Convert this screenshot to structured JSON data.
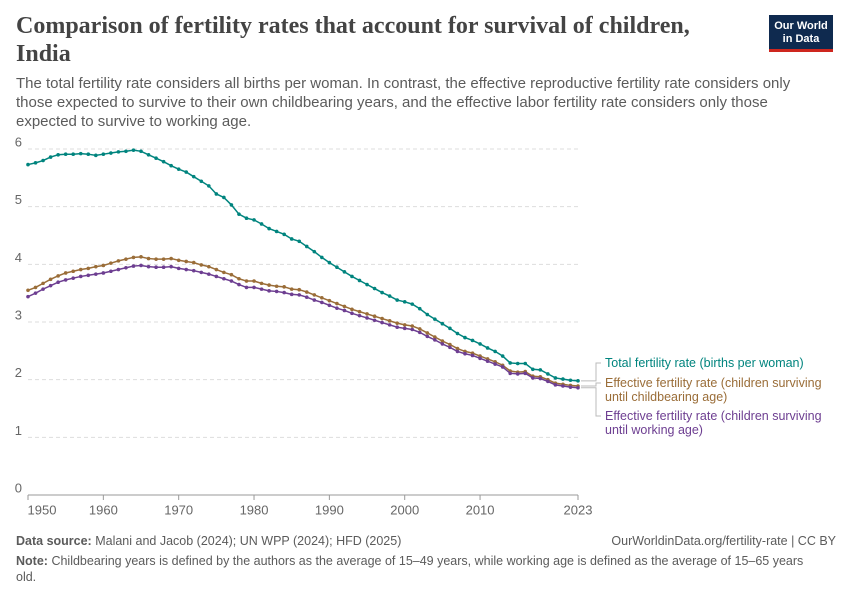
{
  "chart_data": {
    "type": "line",
    "title": "Comparison of fertility rates that account for survival of children, India",
    "subtitle": "The total fertility rate considers all births per woman. In contrast, the effective reproductive fertility rate considers only those expected to survive to their own childbearing years, and the effective labor fertility rate considers only those expected to survive to working age.",
    "logo": [
      "Our World",
      "in Data"
    ],
    "source_label": "Data source:",
    "source": "Malani and Jacob (2024); UN WPP (2024); HFD (2025)",
    "url": "OurWorldinData.org/fertility-rate | CC BY",
    "note_label": "Note:",
    "note": "Childbearing years is defined by the authors as the average of 15–49 years, while working age is defined as the average of 15–65 years old.",
    "x": [
      1950,
      1951,
      1952,
      1953,
      1954,
      1955,
      1956,
      1957,
      1958,
      1959,
      1960,
      1961,
      1962,
      1963,
      1964,
      1965,
      1966,
      1967,
      1968,
      1969,
      1970,
      1971,
      1972,
      1973,
      1974,
      1975,
      1976,
      1977,
      1978,
      1979,
      1980,
      1981,
      1982,
      1983,
      1984,
      1985,
      1986,
      1987,
      1988,
      1989,
      1990,
      1991,
      1992,
      1993,
      1994,
      1995,
      1996,
      1997,
      1998,
      1999,
      2000,
      2001,
      2002,
      2003,
      2004,
      2005,
      2006,
      2007,
      2008,
      2009,
      2010,
      2011,
      2012,
      2013,
      2014,
      2015,
      2016,
      2017,
      2018,
      2019,
      2020,
      2021,
      2022,
      2023
    ],
    "series": [
      {
        "name": "Total fertility rate (births per woman)",
        "color": "#00847e",
        "values": [
          5.73,
          5.76,
          5.8,
          5.86,
          5.9,
          5.91,
          5.91,
          5.92,
          5.91,
          5.89,
          5.91,
          5.93,
          5.95,
          5.96,
          5.98,
          5.96,
          5.9,
          5.84,
          5.78,
          5.71,
          5.65,
          5.6,
          5.52,
          5.44,
          5.36,
          5.22,
          5.16,
          5.03,
          4.87,
          4.8,
          4.77,
          4.7,
          4.62,
          4.57,
          4.52,
          4.44,
          4.4,
          4.31,
          4.22,
          4.12,
          4.03,
          3.95,
          3.87,
          3.79,
          3.72,
          3.65,
          3.58,
          3.51,
          3.45,
          3.38,
          3.35,
          3.31,
          3.23,
          3.13,
          3.05,
          2.97,
          2.89,
          2.8,
          2.73,
          2.68,
          2.62,
          2.55,
          2.49,
          2.41,
          2.29,
          2.28,
          2.28,
          2.18,
          2.17,
          2.1,
          2.03,
          2.01,
          1.99,
          1.98
        ]
      },
      {
        "name": "Effective fertility rate (children surviving until childbearing age)",
        "color": "#9a6d38",
        "values": [
          3.55,
          3.6,
          3.67,
          3.74,
          3.8,
          3.85,
          3.88,
          3.91,
          3.93,
          3.96,
          3.98,
          4.02,
          4.06,
          4.09,
          4.12,
          4.13,
          4.1,
          4.09,
          4.09,
          4.1,
          4.07,
          4.05,
          4.03,
          3.99,
          3.96,
          3.91,
          3.86,
          3.82,
          3.75,
          3.71,
          3.71,
          3.67,
          3.64,
          3.62,
          3.61,
          3.57,
          3.56,
          3.52,
          3.47,
          3.42,
          3.37,
          3.32,
          3.27,
          3.22,
          3.18,
          3.14,
          3.1,
          3.06,
          3.02,
          2.98,
          2.95,
          2.93,
          2.88,
          2.81,
          2.74,
          2.67,
          2.61,
          2.54,
          2.49,
          2.46,
          2.41,
          2.36,
          2.31,
          2.25,
          2.15,
          2.13,
          2.14,
          2.06,
          2.05,
          2.0,
          1.94,
          1.92,
          1.9,
          1.89
        ]
      },
      {
        "name": "Effective fertility rate (children surviving until working age)",
        "color": "#6d3e91",
        "values": [
          3.44,
          3.5,
          3.57,
          3.63,
          3.69,
          3.73,
          3.76,
          3.79,
          3.81,
          3.83,
          3.85,
          3.88,
          3.91,
          3.94,
          3.97,
          3.98,
          3.96,
          3.95,
          3.95,
          3.96,
          3.93,
          3.91,
          3.89,
          3.86,
          3.83,
          3.79,
          3.75,
          3.71,
          3.65,
          3.6,
          3.6,
          3.57,
          3.54,
          3.53,
          3.51,
          3.48,
          3.47,
          3.43,
          3.38,
          3.34,
          3.29,
          3.24,
          3.2,
          3.15,
          3.11,
          3.07,
          3.03,
          2.99,
          2.95,
          2.91,
          2.89,
          2.87,
          2.82,
          2.75,
          2.69,
          2.62,
          2.56,
          2.49,
          2.45,
          2.42,
          2.37,
          2.32,
          2.27,
          2.22,
          2.11,
          2.1,
          2.11,
          2.03,
          2.02,
          1.97,
          1.91,
          1.89,
          1.87,
          1.86
        ]
      }
    ],
    "xlim": [
      1950,
      2023
    ],
    "xticks": [
      1950,
      1960,
      1970,
      1980,
      1990,
      2000,
      2010,
      2023
    ],
    "ylim": [
      0,
      6
    ],
    "yticks": [
      0,
      1,
      2,
      3,
      4,
      5,
      6
    ],
    "grid": true
  }
}
